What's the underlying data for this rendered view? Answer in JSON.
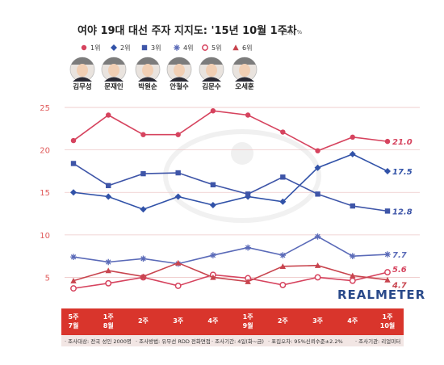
{
  "title": "여야 19대 대선 주자 지지도: '15년 10월 1주차",
  "unit": "단위: %",
  "brand": "REALMETER",
  "footer": [
    "· 조사대상: 전국 성인 2000명",
    "· 조사방법: 유무선 RDD 전화면접",
    "· 조사기간: 4일(화~금)",
    "· 표집오차: 95%신뢰수준±2.2%",
    "· 조사기관: 리얼미터"
  ],
  "chart_data": {
    "type": "line",
    "categories": [
      "5주\n7월",
      "1주\n8월",
      "2주",
      "3주",
      "4주",
      "1주\n9월",
      "2주",
      "3주",
      "4주",
      "1주\n10월"
    ],
    "ylim": [
      2,
      27
    ],
    "yticks": [
      5,
      10,
      15,
      20,
      25
    ],
    "series": [
      {
        "rank": "1위",
        "name": "김무성",
        "color": "#d6435e",
        "marker": "circle",
        "end_label": "21.0",
        "values": [
          21.1,
          24.1,
          21.8,
          21.8,
          24.6,
          24.1,
          22.1,
          19.9,
          21.5,
          21.0
        ]
      },
      {
        "rank": "2위",
        "name": "문재인",
        "color": "#3152a8",
        "marker": "diamond",
        "end_label": "17.5",
        "values": [
          15.0,
          14.5,
          13.0,
          14.5,
          13.5,
          14.5,
          13.9,
          17.9,
          19.5,
          17.5
        ]
      },
      {
        "rank": "3위",
        "name": "박원순",
        "color": "#3e55a8",
        "marker": "square",
        "end_label": "12.8",
        "values": [
          18.4,
          15.8,
          17.2,
          17.3,
          15.9,
          14.8,
          16.8,
          14.8,
          13.4,
          12.8
        ]
      },
      {
        "rank": "4위",
        "name": "안철수",
        "color": "#5a6ab8",
        "marker": "asterisk",
        "end_label": "7.7",
        "values": [
          7.4,
          6.8,
          7.2,
          6.6,
          7.6,
          8.5,
          7.6,
          9.8,
          7.5,
          7.7
        ]
      },
      {
        "rank": "5위",
        "name": "김문수",
        "color": "#d6435e",
        "marker": "open-circle",
        "end_label": "5.6",
        "values": [
          3.7,
          4.3,
          5.0,
          4.0,
          5.3,
          4.9,
          4.1,
          5.0,
          4.6,
          5.6
        ]
      },
      {
        "rank": "6위",
        "name": "오세훈",
        "color": "#c8444e",
        "marker": "triangle",
        "end_label": "4.7",
        "values": [
          4.6,
          5.8,
          5.1,
          6.7,
          5.0,
          4.5,
          6.3,
          6.4,
          5.2,
          4.7
        ]
      }
    ]
  }
}
